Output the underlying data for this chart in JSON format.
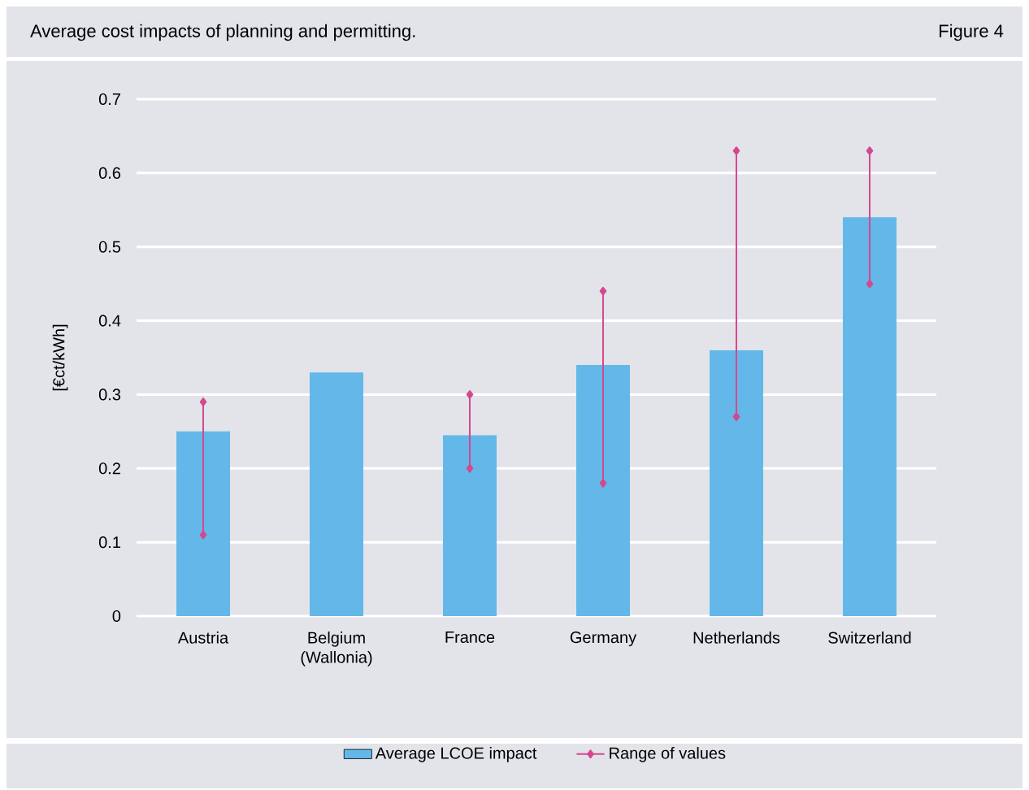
{
  "chart_data": {
    "type": "bar",
    "title": "Average cost impacts of planning and permitting.",
    "annotations": [
      "Figure 4"
    ],
    "ylabel": "[€ct/kWh]",
    "categories": [
      "Austria",
      "Belgium (Wallonia)",
      "France",
      "Germany",
      "Netherlands",
      "Switzerland"
    ],
    "series": [
      {
        "name": "Average LCOE impact",
        "type": "bar",
        "color": "#63b8e9",
        "values": [
          0.25,
          0.33,
          0.245,
          0.34,
          0.36,
          0.54
        ]
      },
      {
        "name": "Range of values",
        "type": "line",
        "color": "#d6478f",
        "marker": "diamond",
        "x": [
          "Austria",
          "Austria",
          "Austria",
          "France",
          "France",
          "France",
          "Germany",
          "Germany",
          "Germany",
          "Netherlands",
          "Netherlands",
          "Netherlands",
          "Switzerland",
          "Switzerland"
        ],
        "values": [
          0.11,
          0.29,
          null,
          0.2,
          0.3,
          null,
          0.18,
          0.44,
          null,
          0.27,
          0.63,
          null,
          0.45,
          0.63
        ]
      }
    ],
    "ylim": [
      0,
      0.7
    ],
    "yticks": [
      0,
      0.1,
      0.2,
      0.3,
      0.4,
      0.5,
      0.6,
      0.7
    ],
    "grid": "y",
    "legend": "bottom"
  }
}
